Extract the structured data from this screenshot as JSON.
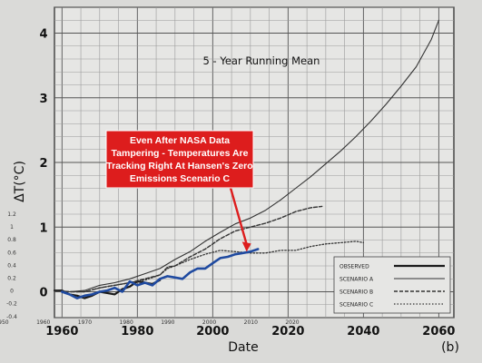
{
  "chart_data": {
    "type": "line",
    "title": "5 - Year Running Mean",
    "panel_label": "(b)",
    "xlabel": "Date",
    "ylabel": "ΔT(°C)",
    "xlim": [
      1958,
      2064
    ],
    "ylim": [
      -0.4,
      4.4
    ],
    "grid": true,
    "legend_position": "bottom-right",
    "x_ticks_major": [
      1960,
      1980,
      2000,
      2020,
      2040,
      2060
    ],
    "y_ticks_major": [
      0,
      1,
      2,
      3,
      4
    ],
    "x_ticks_overlay": [
      1950,
      1960,
      1970,
      1980,
      1990,
      2000,
      2010,
      2020
    ],
    "y_ticks_overlay": [
      "1.2",
      "1",
      "0.8",
      "0.6",
      "0.4",
      "0.2",
      "0",
      "-0.2",
      "-0.4"
    ],
    "series": [
      {
        "name": "OBSERVED",
        "style": "solid-bold",
        "color": "#1a1a1a",
        "x": [
          1958,
          1960,
          1962,
          1964,
          1966,
          1968,
          1970,
          1972,
          1974,
          1976,
          1978,
          1980,
          1982,
          1984,
          1986
        ],
        "y": [
          0.02,
          0.02,
          -0.04,
          -0.06,
          -0.1,
          -0.06,
          0.0,
          -0.02,
          -0.04,
          0.04,
          0.08,
          0.16,
          0.14,
          0.12,
          0.18
        ]
      },
      {
        "name": "SCENARIO A",
        "style": "solid",
        "color": "#333333",
        "x": [
          1958,
          1962,
          1966,
          1970,
          1974,
          1978,
          1982,
          1986,
          1990,
          1994,
          1998,
          2002,
          2006,
          2010,
          2014,
          2018,
          2022,
          2026,
          2030,
          2034,
          2038,
          2042,
          2046,
          2050,
          2054,
          2058,
          2060
        ],
        "y": [
          0.02,
          0.0,
          0.02,
          0.1,
          0.14,
          0.2,
          0.28,
          0.36,
          0.5,
          0.62,
          0.78,
          0.92,
          1.05,
          1.14,
          1.26,
          1.42,
          1.6,
          1.78,
          1.98,
          2.18,
          2.4,
          2.64,
          2.9,
          3.18,
          3.48,
          3.9,
          4.2
        ]
      },
      {
        "name": "SCENARIO B",
        "style": "dashed",
        "color": "#333333",
        "x": [
          1958,
          1962,
          1966,
          1970,
          1974,
          1978,
          1982,
          1986,
          1988,
          1990,
          1994,
          1998,
          2002,
          2006,
          2010,
          2014,
          2018,
          2022,
          2026,
          2029
        ],
        "y": [
          0.02,
          0.0,
          0.0,
          0.06,
          0.1,
          0.14,
          0.2,
          0.26,
          0.38,
          0.4,
          0.54,
          0.66,
          0.82,
          0.94,
          1.0,
          1.06,
          1.14,
          1.24,
          1.3,
          1.32
        ]
      },
      {
        "name": "SCENARIO C",
        "style": "dotted",
        "color": "#333333",
        "x": [
          1958,
          1962,
          1966,
          1970,
          1974,
          1978,
          1982,
          1986,
          1988,
          1990,
          1994,
          1998,
          2002,
          2006,
          2010,
          2014,
          2018,
          2022,
          2026,
          2030,
          2034,
          2038,
          2040
        ],
        "y": [
          0.02,
          0.0,
          0.0,
          0.06,
          0.1,
          0.14,
          0.18,
          0.26,
          0.36,
          0.4,
          0.5,
          0.58,
          0.64,
          0.62,
          0.6,
          0.6,
          0.64,
          0.64,
          0.7,
          0.74,
          0.76,
          0.78,
          0.76
        ]
      },
      {
        "name": "Temperatures",
        "style": "solid-bold",
        "color": "#1f4aa0",
        "x": [
          1960,
          1962,
          1964,
          1966,
          1968,
          1970,
          1972,
          1974,
          1976,
          1978,
          1980,
          1982,
          1984,
          1986,
          1988,
          1990,
          1992,
          1994,
          1996,
          1998,
          2000,
          2002,
          2004,
          2006,
          2008,
          2010,
          2012
        ],
        "y": [
          0.0,
          -0.04,
          -0.1,
          -0.06,
          -0.04,
          0.0,
          0.02,
          0.06,
          0.0,
          0.16,
          0.1,
          0.14,
          0.1,
          0.2,
          0.24,
          0.22,
          0.2,
          0.3,
          0.36,
          0.36,
          0.44,
          0.52,
          0.54,
          0.58,
          0.6,
          0.62,
          0.66
        ]
      }
    ],
    "annotations": [
      {
        "text": [
          "Even After NASA Data",
          "Tampering - Temperatures Are",
          "Tracking Right At Hansen's Zero",
          "Emissions Scenario C"
        ],
        "box_color": "#dd1d1d",
        "arrow_to_x": 2009,
        "arrow_to_y": 0.62
      }
    ]
  }
}
